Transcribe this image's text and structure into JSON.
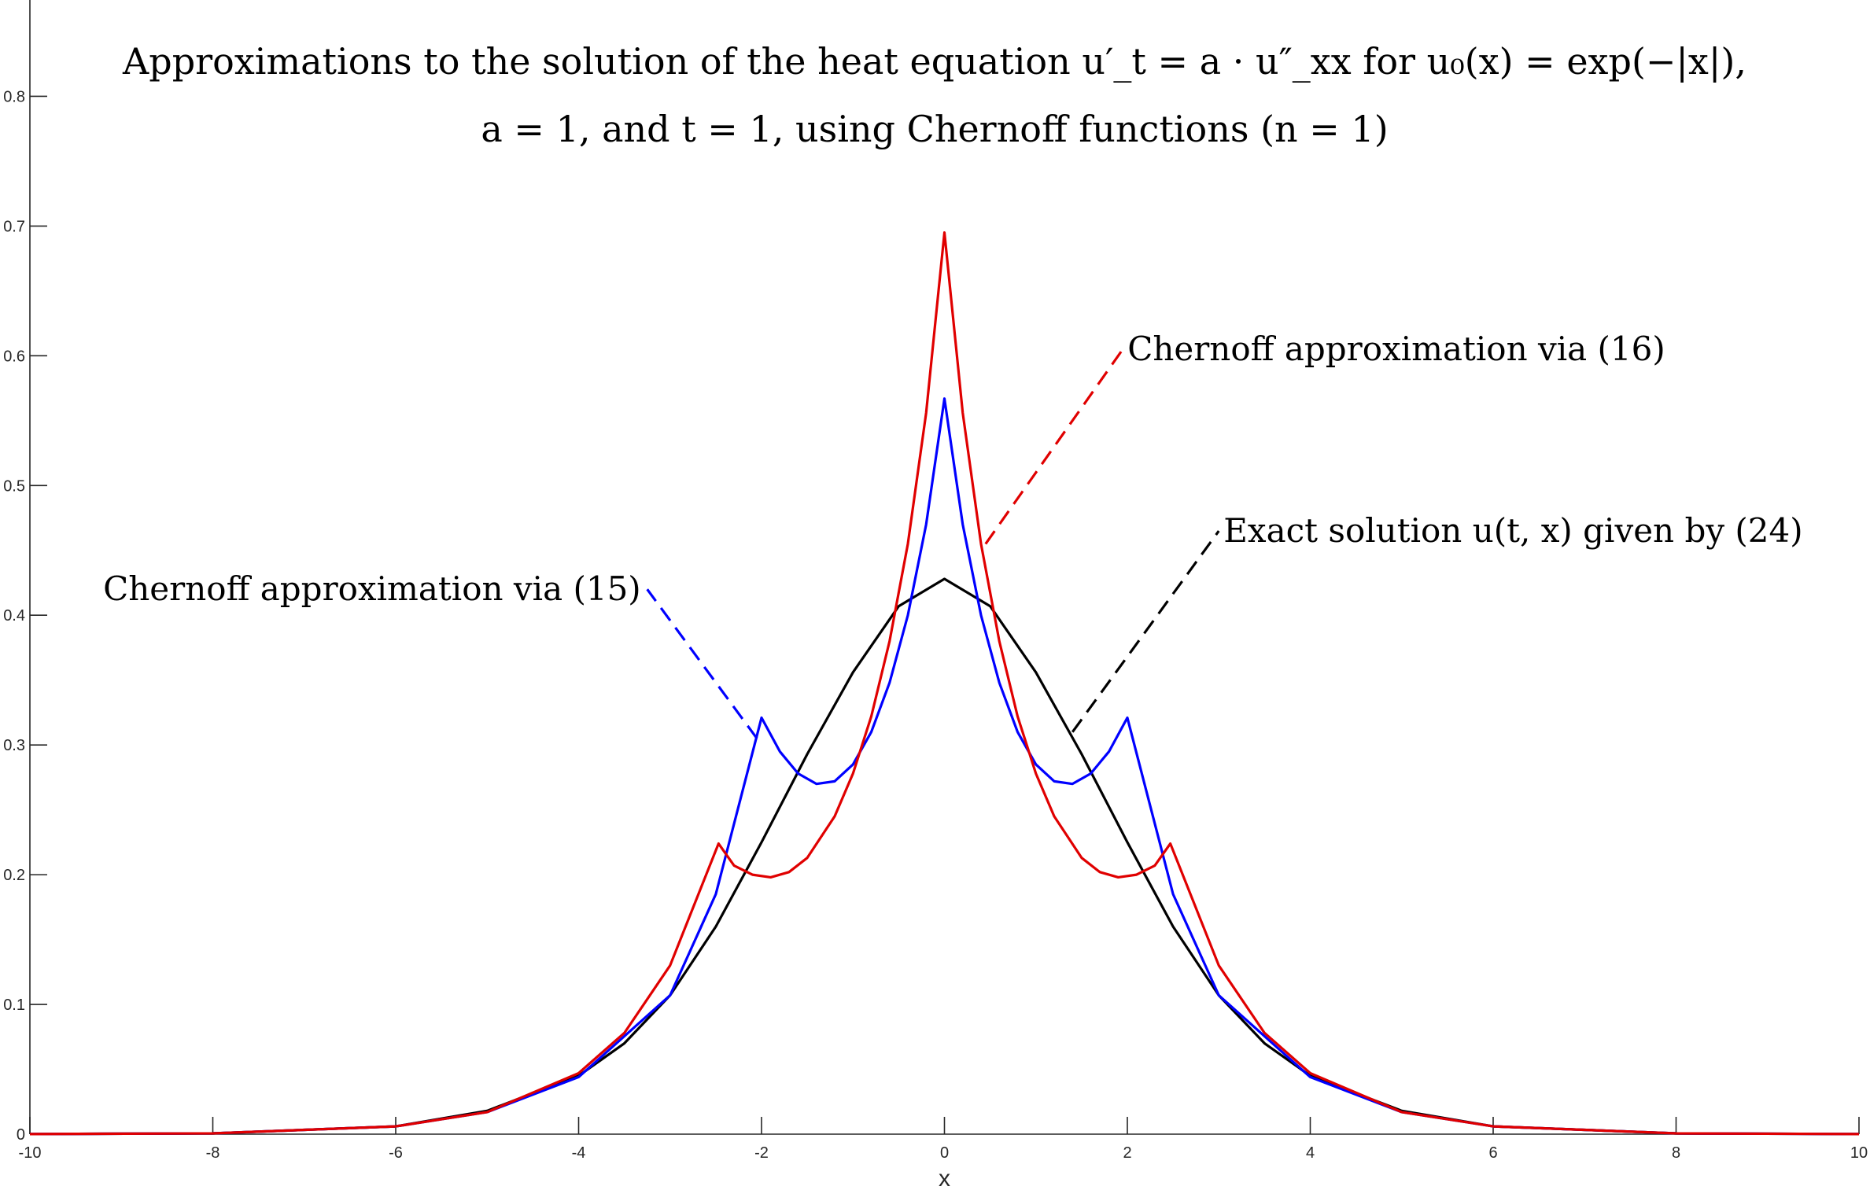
{
  "chart_data": {
    "type": "line",
    "title_lines": [
      "Approximations to the solution of the heat equation u′_t = a · u″_xx for u₀(x) = exp(−|x|),",
      "a = 1, and t = 1, using Chernoff functions (n = 1)"
    ],
    "xlabel": "x",
    "ylabel": "",
    "xlim": [
      -10,
      10
    ],
    "ylim": [
      0,
      0.85
    ],
    "grid": false,
    "x_ticks": [
      -10,
      -8,
      -6,
      -4,
      -2,
      0,
      2,
      4,
      6,
      8,
      10
    ],
    "x_tick_labels": [
      "-10",
      "-8",
      "-6",
      "-4",
      "-2",
      "0",
      "2",
      "4",
      "6",
      "8",
      "10"
    ],
    "y_ticks": [
      0,
      0.1,
      0.2,
      0.3,
      0.4,
      0.5,
      0.6,
      0.7,
      0.8
    ],
    "y_tick_labels": [
      "0",
      "0.1",
      "0.2",
      "0.3",
      "0.4",
      "0.5",
      "0.6",
      "0.7",
      "0.8"
    ],
    "series": [
      {
        "color": "#000000",
        "x": [
          -10,
          -8,
          -6,
          -5,
          -4,
          -3.5,
          -3,
          -2.5,
          -2,
          -1.5,
          -1,
          -0.5,
          0,
          0.5,
          1,
          1.5,
          2,
          2.5,
          3,
          3.5,
          4,
          5,
          6,
          8,
          10
        ],
        "y": [
          0.0001,
          0.0006,
          0.006,
          0.018,
          0.045,
          0.07,
          0.107,
          0.16,
          0.225,
          0.293,
          0.356,
          0.407,
          0.428,
          0.407,
          0.356,
          0.293,
          0.225,
          0.16,
          0.107,
          0.07,
          0.045,
          0.018,
          0.006,
          0.0006,
          0.0001
        ]
      },
      {
        "color": "#0000ff",
        "x": [
          -10,
          -8,
          -6,
          -5,
          -4,
          -3,
          -2.5,
          -2,
          -1.8,
          -1.6,
          -1.4,
          -1.2,
          -1,
          -0.8,
          -0.6,
          -0.4,
          -0.2,
          0,
          0.2,
          0.4,
          0.6,
          0.8,
          1,
          1.2,
          1.4,
          1.6,
          1.8,
          2,
          2.5,
          3,
          4,
          5,
          6,
          8,
          10
        ],
        "y": [
          0.0001,
          0.0006,
          0.006,
          0.017,
          0.044,
          0.107,
          0.185,
          0.321,
          0.295,
          0.278,
          0.27,
          0.272,
          0.285,
          0.31,
          0.348,
          0.4,
          0.47,
          0.567,
          0.47,
          0.4,
          0.348,
          0.31,
          0.285,
          0.272,
          0.27,
          0.278,
          0.295,
          0.321,
          0.185,
          0.107,
          0.044,
          0.017,
          0.006,
          0.0006,
          0.0001
        ]
      },
      {
        "color": "#e00000",
        "x": [
          -10,
          -8,
          -6,
          -5,
          -4,
          -3.5,
          -3,
          -2.47,
          -2.3,
          -2.1,
          -1.9,
          -1.7,
          -1.5,
          -1.2,
          -1,
          -0.8,
          -0.6,
          -0.4,
          -0.2,
          0,
          0.2,
          0.4,
          0.6,
          0.8,
          1,
          1.2,
          1.5,
          1.7,
          1.9,
          2.1,
          2.3,
          2.47,
          3,
          3.5,
          4,
          5,
          6,
          8,
          10
        ],
        "y": [
          0.0001,
          0.0006,
          0.006,
          0.017,
          0.047,
          0.078,
          0.13,
          0.224,
          0.207,
          0.2,
          0.198,
          0.202,
          0.213,
          0.245,
          0.278,
          0.322,
          0.38,
          0.455,
          0.556,
          0.695,
          0.556,
          0.455,
          0.38,
          0.322,
          0.278,
          0.245,
          0.213,
          0.202,
          0.198,
          0.2,
          0.207,
          0.224,
          0.13,
          0.078,
          0.047,
          0.017,
          0.006,
          0.0006,
          0.0001
        ]
      }
    ],
    "annotations": [
      {
        "text": "Chernoff approximation via (16)",
        "color": "#e00000",
        "line_from": [
          0.45,
          0.455
        ],
        "line_to": [
          1.95,
          0.605
        ]
      },
      {
        "text": "Exact solution u(t, x) given by (24)",
        "color": "#000000",
        "line_from": [
          1.4,
          0.31
        ],
        "line_to": [
          3.0,
          0.465
        ]
      },
      {
        "text": "Chernoff approximation via (15)",
        "color": "#0000ff",
        "line_from": [
          -2.05,
          0.305
        ],
        "line_to": [
          -3.25,
          0.42
        ]
      }
    ]
  }
}
